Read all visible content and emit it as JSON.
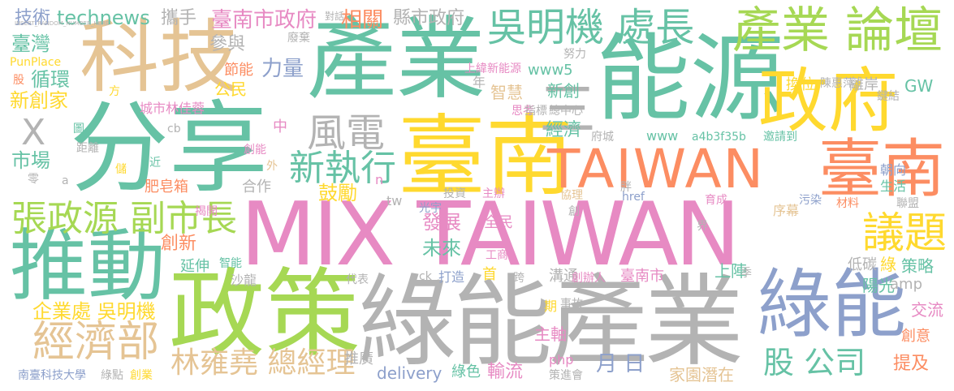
{
  "palette": {
    "green": "#66c2a5",
    "orange": "#fc8d62",
    "blue": "#8da0cb",
    "pink": "#e78ac3",
    "lime": "#a6d854",
    "yellow": "#ffd92f",
    "tan": "#e5c494",
    "gray": "#b3b3b3"
  },
  "words": [
    {
      "text": "MIX TAIWAN",
      "color": "pink"
    },
    {
      "text": "產業",
      "color": "green"
    },
    {
      "text": "分享",
      "color": "green"
    },
    {
      "text": "綠能產業",
      "color": "gray"
    },
    {
      "text": "能源",
      "color": "green"
    },
    {
      "text": "臺南",
      "color": "yellow"
    },
    {
      "text": "政策",
      "color": "lime"
    },
    {
      "text": "科技",
      "color": "tan"
    },
    {
      "text": "TAIWAN",
      "color": "orange"
    },
    {
      "text": "推動",
      "color": "green"
    },
    {
      "text": "綠能",
      "color": "blue"
    },
    {
      "text": "政府",
      "color": "yellow"
    },
    {
      "text": "臺南",
      "color": "orange"
    },
    {
      "text": "產業 論壇",
      "color": "lime"
    },
    {
      "text": "吳明機 處長",
      "color": "green"
    },
    {
      "text": "經濟部",
      "color": "tan"
    },
    {
      "text": "張政源 副市長",
      "color": "lime"
    },
    {
      "text": "議題",
      "color": "yellow"
    },
    {
      "text": "風電",
      "color": "gray"
    },
    {
      "text": "新執行",
      "color": "green"
    },
    {
      "text": "X",
      "color": "gray"
    },
    {
      "text": "三",
      "color": "gray"
    },
    {
      "text": "林雍堯 總經理",
      "color": "tan"
    },
    {
      "text": "股 公司",
      "color": "green"
    },
    {
      "text": "技術",
      "color": "blue"
    },
    {
      "text": "technews",
      "color": "green"
    },
    {
      "text": "攜手",
      "color": "gray"
    },
    {
      "text": "臺南市政府",
      "color": "pink"
    },
    {
      "text": "相關",
      "color": "orange"
    },
    {
      "text": "縣市政府",
      "color": "gray"
    },
    {
      "text": "臺灣",
      "color": "green"
    },
    {
      "text": "循環",
      "color": "green"
    },
    {
      "text": "新創家",
      "color": "yellow"
    },
    {
      "text": "參與",
      "color": "gray"
    },
    {
      "text": "力量",
      "color": "blue"
    },
    {
      "text": "節能",
      "color": "orange"
    },
    {
      "text": "公民",
      "color": "yellow"
    },
    {
      "text": "城市林佳蓉",
      "color": "pink"
    },
    {
      "text": "市場",
      "color": "green"
    },
    {
      "text": "肥皂箱",
      "color": "orange"
    },
    {
      "text": "合作",
      "color": "gray"
    },
    {
      "text": "鼓勵",
      "color": "yellow"
    },
    {
      "text": "創新",
      "color": "orange"
    },
    {
      "text": "發展",
      "color": "pink"
    },
    {
      "text": "未來",
      "color": "green"
    },
    {
      "text": "延伸",
      "color": "green"
    },
    {
      "text": "企業處 吳明機",
      "color": "yellow"
    },
    {
      "text": "推廣",
      "color": "gray"
    },
    {
      "text": "delivery",
      "color": "blue"
    },
    {
      "text": "綠色",
      "color": "green"
    },
    {
      "text": "輸流",
      "color": "pink"
    },
    {
      "text": "月 日",
      "color": "blue"
    },
    {
      "text": "家園潛在",
      "color": "tan"
    },
    {
      "text": "提及",
      "color": "orange"
    },
    {
      "text": "創意",
      "color": "orange"
    },
    {
      "text": "交流",
      "color": "pink"
    },
    {
      "text": "陽光",
      "color": "green"
    },
    {
      "text": "策略",
      "color": "green"
    },
    {
      "text": "低碳",
      "color": "gray"
    },
    {
      "text": "GW",
      "color": "green"
    },
    {
      "text": "amp",
      "color": "gray"
    },
    {
      "text": "離岸",
      "color": "gray"
    },
    {
      "text": "換位",
      "color": "yellow"
    },
    {
      "text": "陳惠萍",
      "color": "gray"
    },
    {
      "text": "朝向",
      "color": "blue"
    },
    {
      "text": "生活",
      "color": "green"
    },
    {
      "text": "經濟",
      "color": "green"
    },
    {
      "text": "智慧",
      "color": "tan"
    },
    {
      "text": "新創",
      "color": "green"
    },
    {
      "text": "www5",
      "color": "green"
    },
    {
      "text": "www",
      "color": "green"
    },
    {
      "text": "a4b3f35b",
      "color": "green"
    },
    {
      "text": "邀請到",
      "color": "green"
    },
    {
      "text": "上緯新能源",
      "color": "pink"
    },
    {
      "text": "主軸",
      "color": "pink"
    },
    {
      "text": "溝通",
      "color": "gray"
    },
    {
      "text": "臺南市",
      "color": "pink"
    },
    {
      "text": "上陣",
      "color": "green"
    },
    {
      "text": "全民",
      "color": "pink"
    },
    {
      "text": "光宇",
      "color": "blue"
    },
    {
      "text": "投資",
      "color": "gray"
    },
    {
      "text": "主辦",
      "color": "pink"
    },
    {
      "text": "協理",
      "color": "tan"
    },
    {
      "text": "育成",
      "color": "pink"
    },
    {
      "text": "序幕",
      "color": "tan"
    },
    {
      "text": "污染",
      "color": "blue"
    },
    {
      "text": "材料",
      "color": "orange"
    },
    {
      "text": "聯盟",
      "color": "gray"
    },
    {
      "text": "href",
      "color": "blue"
    },
    {
      "text": "php",
      "color": "pink"
    },
    {
      "text": "首",
      "color": "yellow"
    },
    {
      "text": "打造",
      "color": "blue"
    },
    {
      "text": "代表",
      "color": "gray"
    },
    {
      "text": "沙龍",
      "color": "gray"
    },
    {
      "text": "ck",
      "color": "gray"
    },
    {
      "text": "創辦人",
      "color": "pink"
    },
    {
      "text": "季",
      "color": "gray"
    },
    {
      "text": "期",
      "color": "yellow"
    },
    {
      "text": "事故",
      "color": "gray"
    },
    {
      "text": "策進會",
      "color": "gray"
    },
    {
      "text": "南臺科技大學",
      "color": "blue"
    },
    {
      "text": "綠點",
      "color": "gray"
    },
    {
      "text": "創業",
      "color": "yellow"
    },
    {
      "text": "PunPlace",
      "color": "yellow"
    },
    {
      "text": "方",
      "color": "yellow"
    },
    {
      "text": "股",
      "color": "orange"
    },
    {
      "text": "cb",
      "color": "gray"
    },
    {
      "text": "圖",
      "color": "green"
    },
    {
      "text": "距離",
      "color": "gray"
    },
    {
      "text": "近",
      "color": "green"
    },
    {
      "text": "儲",
      "color": "yellow"
    },
    {
      "text": "零",
      "color": "gray"
    },
    {
      "text": "a",
      "color": "gray"
    },
    {
      "text": "揭開",
      "color": "pink"
    },
    {
      "text": "智能",
      "color": "green"
    },
    {
      "text": "中",
      "color": "pink"
    },
    {
      "text": "創能",
      "color": "pink"
    },
    {
      "text": "外",
      "color": "tan"
    },
    {
      "text": "n",
      "color": "pink"
    },
    {
      "text": "tw",
      "color": "gray"
    },
    {
      "text": "工商",
      "color": "pink"
    },
    {
      "text": "跨",
      "color": "gray"
    },
    {
      "text": "創",
      "color": "gray"
    },
    {
      "text": "思考",
      "color": "pink"
    },
    {
      "text": "指標",
      "color": "gray"
    },
    {
      "text": "總中心",
      "color": "gray"
    },
    {
      "text": "府城",
      "color": "gray"
    },
    {
      "text": "年",
      "color": "gray"
    },
    {
      "text": "努力",
      "color": "gray"
    },
    {
      "text": "鍵結",
      "color": "gray"
    },
    {
      "text": "廢棄",
      "color": "gray"
    },
    {
      "text": "對話",
      "color": "gray"
    },
    {
      "text": "界",
      "color": "gray"
    },
    {
      "text": "綠",
      "color": "yellow"
    },
    {
      "text": "胖",
      "color": "gray"
    },
    {
      "text": "INSERT_RANDOM_NUMBER_HERE",
      "color": "gray"
    }
  ]
}
